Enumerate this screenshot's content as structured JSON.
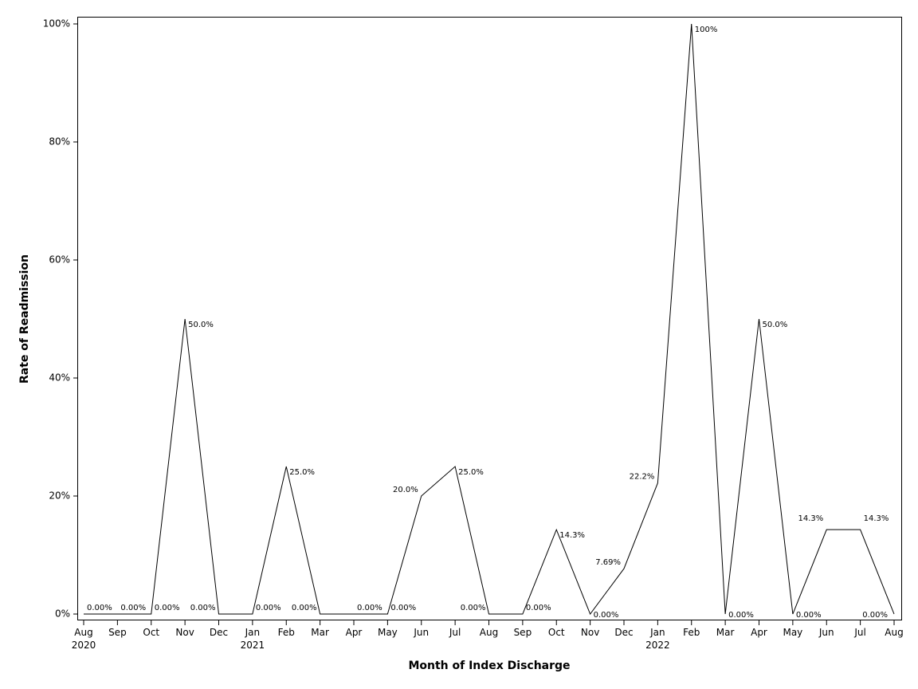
{
  "chart_data": {
    "type": "line",
    "xlabel": "Month of Index Discharge",
    "ylabel": "Rate of Readmission",
    "ylim": [
      0,
      100
    ],
    "yticks": [
      0,
      20,
      40,
      60,
      80,
      100
    ],
    "ytick_labels": [
      "0%",
      "20%",
      "40%",
      "60%",
      "80%",
      "100%"
    ],
    "grid": false,
    "categories": [
      "Aug",
      "Sep",
      "Oct",
      "Nov",
      "Dec",
      "Jan",
      "Feb",
      "Mar",
      "Apr",
      "May",
      "Jun",
      "Jul",
      "Aug",
      "Sep",
      "Oct",
      "Nov",
      "Dec",
      "Jan",
      "Feb",
      "Mar",
      "Apr",
      "May",
      "Jun",
      "Jul",
      "Aug"
    ],
    "year_labels": [
      {
        "index": 0,
        "label": "2020"
      },
      {
        "index": 5,
        "label": "2021"
      },
      {
        "index": 17,
        "label": "2022"
      }
    ],
    "values": [
      0,
      0,
      0,
      50,
      0,
      0,
      25,
      0,
      0,
      0,
      20,
      25,
      0,
      0,
      14.3,
      0,
      7.69,
      22.2,
      100,
      0,
      50,
      0,
      14.3,
      14.3,
      0
    ],
    "data_labels": [
      "0.00%",
      "0.00%",
      "0.00%",
      "50.0%",
      "0.00%",
      "0.00%",
      "25.0%",
      "0.00%",
      "0.00%",
      "0.00%",
      "20.0%",
      "25.0%",
      "0.00%",
      "0.00%",
      "14.3%",
      "0.00%",
      "7.69%",
      "22.2%",
      "100%",
      "0.00%",
      "50.0%",
      "0.00%",
      "14.3%",
      "14.3%",
      "0.00%"
    ]
  }
}
